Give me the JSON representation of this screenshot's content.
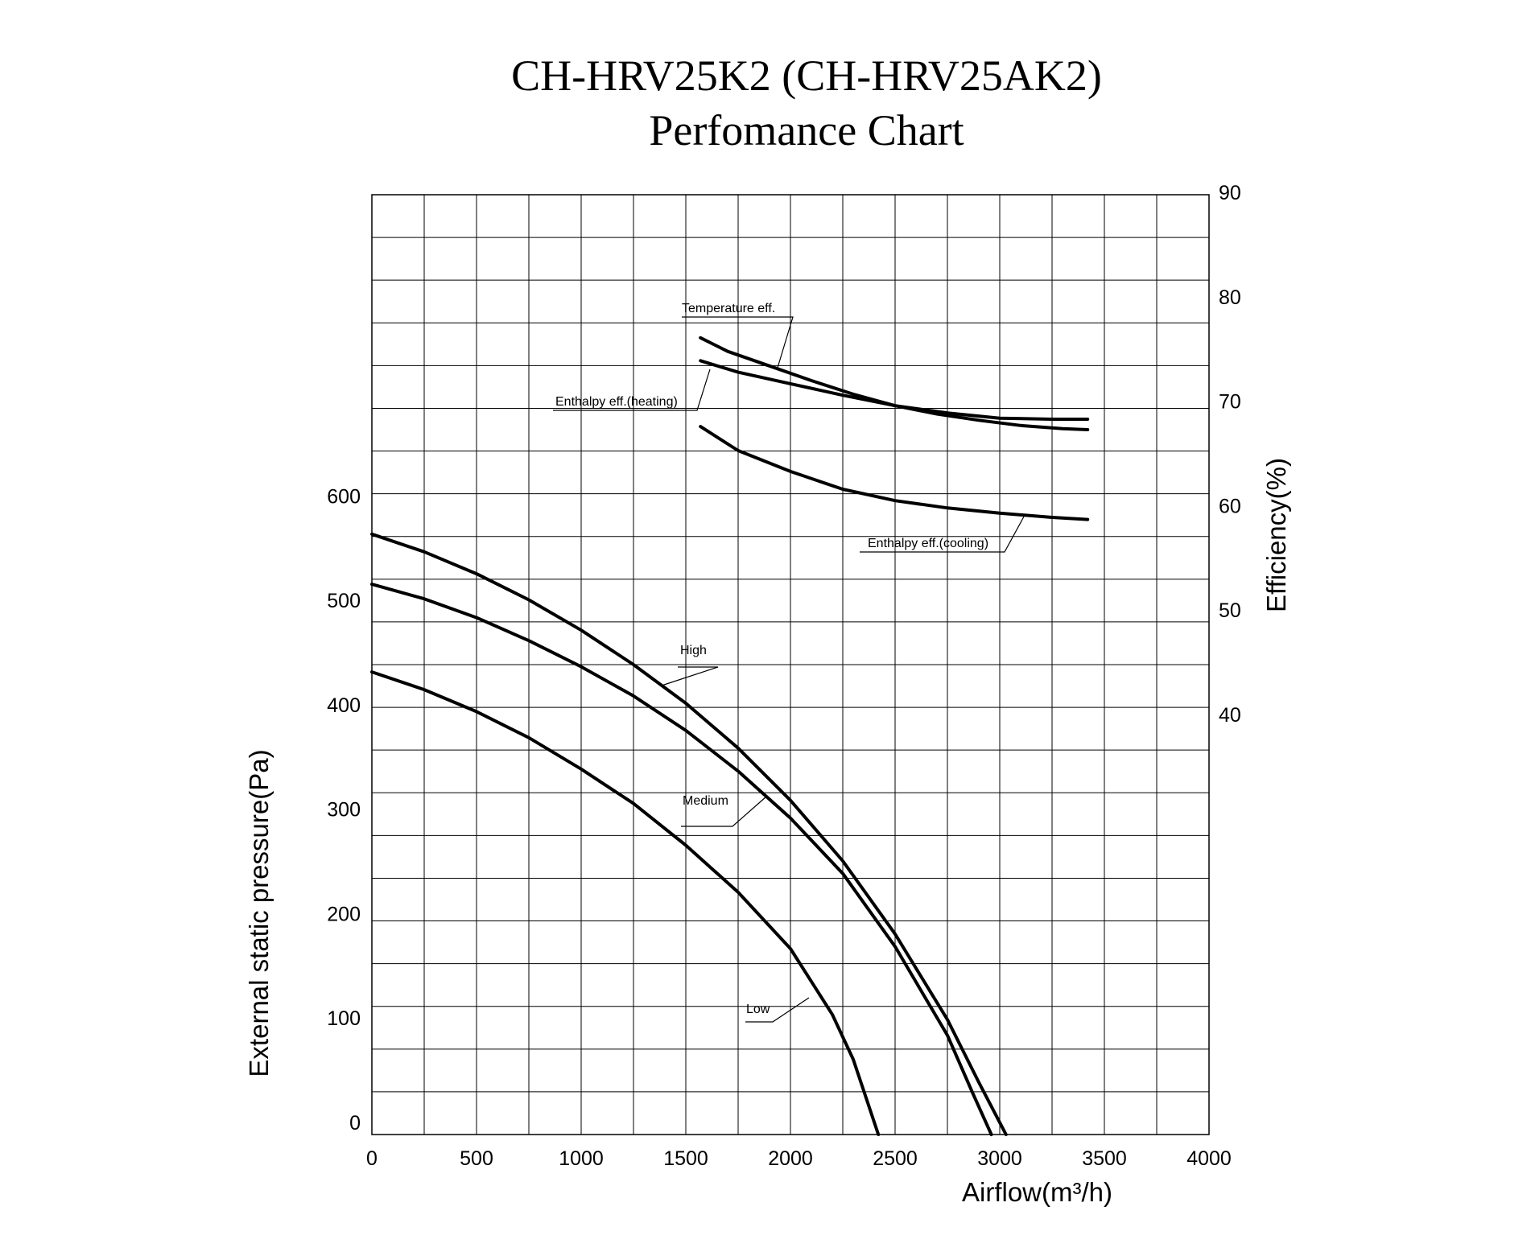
{
  "chart_data": {
    "type": "line",
    "title": "CH-HRV25K2 (CH-HRV25AK2)",
    "subtitle": "Perfomance Chart",
    "xlabel": "Airflow(m³/h)",
    "ylabel_left": "External static pressure(Pa)",
    "ylabel_right": "Efficiency(%)",
    "xlim": [
      0,
      4000
    ],
    "ylim_left": [
      0,
      900
    ],
    "ylim_right": [
      0,
      90
    ],
    "x_ticks": [
      "0",
      "500",
      "1000",
      "1500",
      "2000",
      "2500",
      "3000",
      "3500",
      "4000"
    ],
    "y_left_ticks": [
      "0",
      "100",
      "200",
      "300",
      "400",
      "500",
      "600"
    ],
    "y_right_ticks": [
      "40",
      "50",
      "60",
      "70",
      "80",
      "90"
    ],
    "grid": true,
    "pressure_series": [
      {
        "name": "High",
        "x": [
          0,
          250,
          500,
          750,
          1000,
          1250,
          1500,
          1750,
          2000,
          2250,
          2500,
          2750,
          2900,
          3030
        ],
        "y": [
          575,
          558,
          537,
          512,
          483,
          450,
          413,
          370,
          320,
          262,
          192,
          110,
          50,
          0
        ]
      },
      {
        "name": "Medium",
        "x": [
          0,
          250,
          500,
          750,
          1000,
          1250,
          1500,
          1750,
          2000,
          2250,
          2500,
          2750,
          2870,
          2960
        ],
        "y": [
          527,
          513,
          495,
          473,
          448,
          420,
          387,
          348,
          303,
          250,
          180,
          95,
          40,
          0
        ]
      },
      {
        "name": "Low",
        "x": [
          0,
          250,
          500,
          750,
          1000,
          1250,
          1500,
          1750,
          2000,
          2200,
          2300,
          2420
        ],
        "y": [
          443,
          426,
          405,
          380,
          350,
          317,
          277,
          232,
          178,
          115,
          72,
          0
        ]
      }
    ],
    "efficiency_series": [
      {
        "name": "Temperature eff.",
        "x": [
          1570,
          1700,
          1900,
          2100,
          2300,
          2500,
          2700,
          2900,
          3100,
          3300,
          3420
        ],
        "y": [
          76.3,
          75.0,
          73.6,
          72.2,
          70.9,
          69.8,
          69.0,
          68.4,
          67.9,
          67.6,
          67.5
        ]
      },
      {
        "name": "Enthalpy eff.(heating)",
        "x": [
          1570,
          1750,
          2000,
          2250,
          2500,
          2750,
          3000,
          3250,
          3420
        ],
        "y": [
          74.1,
          73.0,
          71.9,
          70.8,
          69.8,
          69.1,
          68.6,
          68.5,
          68.5
        ]
      },
      {
        "name": "Enthalpy eff.(cooling)",
        "x": [
          1570,
          1750,
          2000,
          2250,
          2500,
          2750,
          3000,
          3250,
          3420
        ],
        "y": [
          67.8,
          65.5,
          63.5,
          61.8,
          60.7,
          60.0,
          59.5,
          59.1,
          58.9
        ]
      }
    ],
    "annotations": [
      "Temperature eff.",
      "Enthalpy eff.(heating)",
      "Enthalpy eff.(cooling)",
      "High",
      "Medium",
      "Low"
    ]
  }
}
